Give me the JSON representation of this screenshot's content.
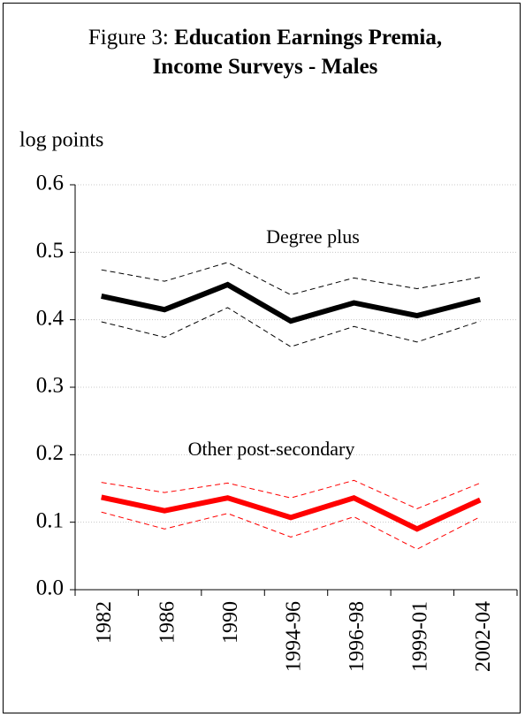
{
  "chart_data": {
    "type": "line",
    "title_prefix": "Figure 3:",
    "title": "Education Earnings Premia, Income Surveys - Males",
    "y_label": "log points",
    "categories": [
      "1982",
      "1986",
      "1990",
      "1994-96",
      "1996-98",
      "1999-01",
      "2002-04"
    ],
    "ylim": [
      0,
      0.6
    ],
    "yticks": [
      {
        "value": 0,
        "label": "0.0"
      },
      0.1,
      0.2,
      0.3,
      0.4,
      0.5,
      0.6
    ],
    "grid": true,
    "series": [
      {
        "name": "Degree plus",
        "color": "#000000",
        "values": [
          0.435,
          0.415,
          0.452,
          0.398,
          0.425,
          0.406,
          0.43
        ]
      },
      {
        "color": "#000000",
        "dashed": true,
        "values": [
          0.474,
          0.457,
          0.485,
          0.437,
          0.462,
          0.446,
          0.463
        ]
      },
      {
        "color": "#000000",
        "dashed": true,
        "values": [
          0.397,
          0.374,
          0.418,
          0.36,
          0.39,
          0.367,
          0.398
        ]
      },
      {
        "name": "Other post-secondary",
        "color": "#ff0000",
        "values": [
          0.137,
          0.117,
          0.136,
          0.107,
          0.136,
          0.09,
          0.133
        ]
      },
      {
        "color": "#ff0000",
        "dashed": true,
        "values": [
          0.159,
          0.144,
          0.158,
          0.136,
          0.162,
          0.12,
          0.158
        ]
      },
      {
        "color": "#ff0000",
        "dashed": true,
        "values": [
          0.115,
          0.09,
          0.113,
          0.078,
          0.108,
          0.06,
          0.108
        ]
      }
    ]
  }
}
